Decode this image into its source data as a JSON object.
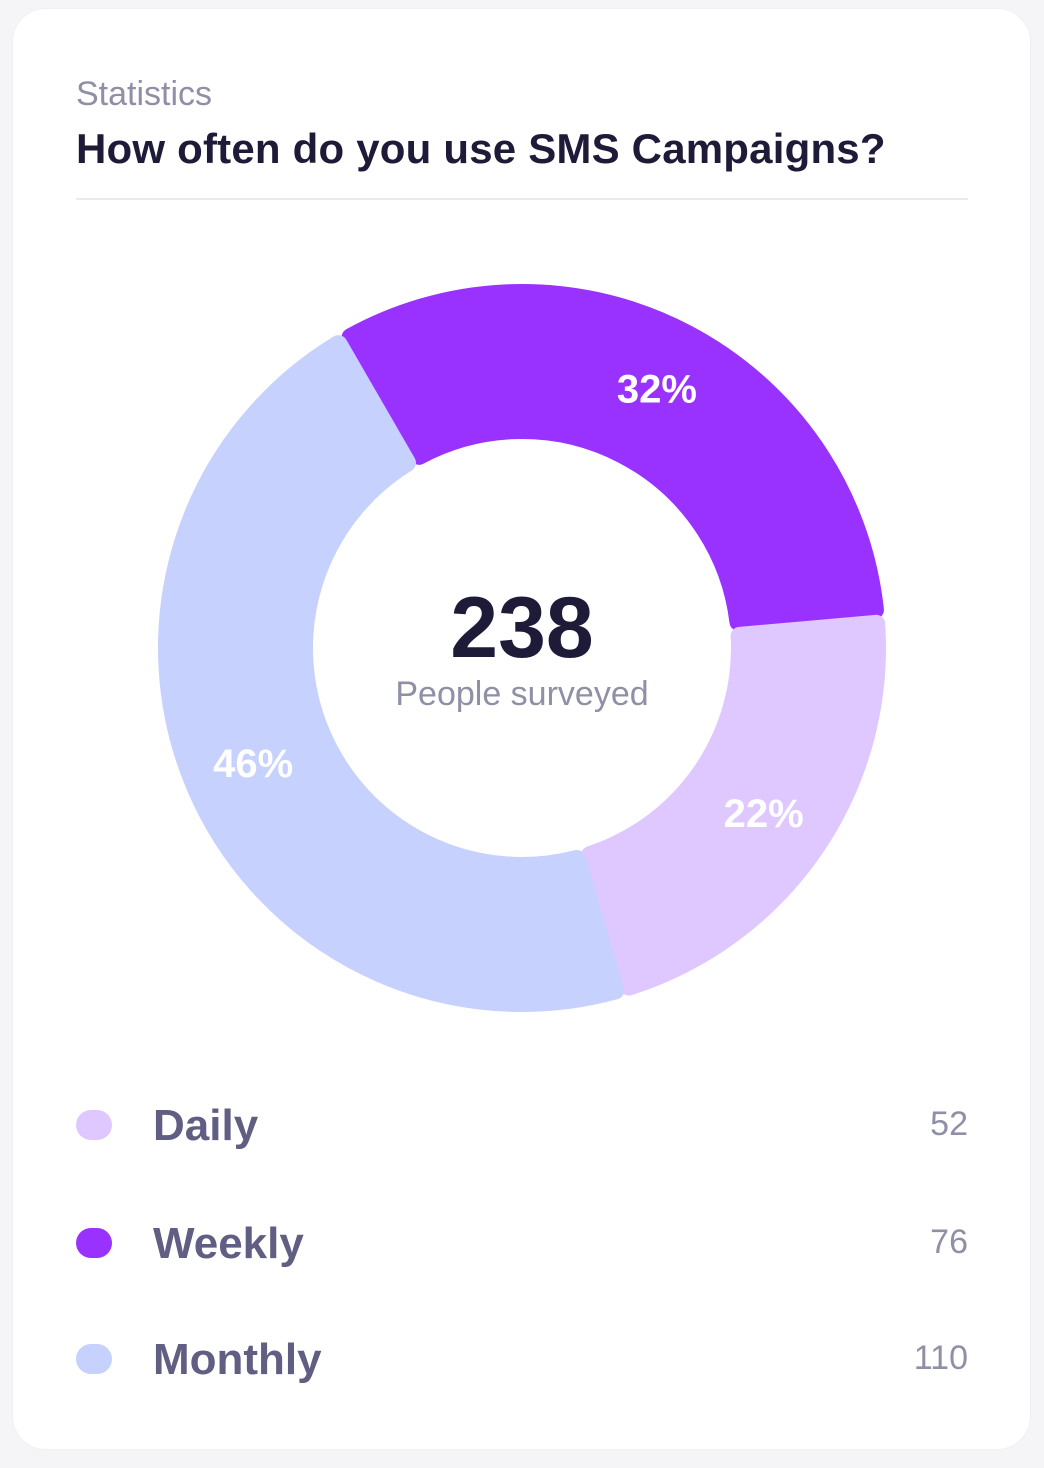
{
  "card": {
    "eyebrow": "Statistics",
    "title": "How often do you use SMS Campaigns?"
  },
  "center": {
    "value": "238",
    "caption": "People surveyed"
  },
  "chart_data": {
    "type": "pie",
    "variant": "donut",
    "title": "How often do you use SMS Campaigns?",
    "total": 238,
    "slices": [
      {
        "label": "Weekly",
        "value": 76,
        "percent_label": "32%",
        "color": "#9931ff"
      },
      {
        "label": "Daily",
        "value": 52,
        "percent_label": "22%",
        "color": "#dfc8ff"
      },
      {
        "label": "Monthly",
        "value": 110,
        "percent_label": "46%",
        "color": "#c6d2fd"
      }
    ],
    "legend_position": "bottom"
  },
  "legend": [
    {
      "label": "Daily",
      "value": "52",
      "color": "#dfc8ff"
    },
    {
      "label": "Weekly",
      "value": "76",
      "color": "#9931ff"
    },
    {
      "label": "Monthly",
      "value": "110",
      "color": "#c6d2fd"
    }
  ]
}
